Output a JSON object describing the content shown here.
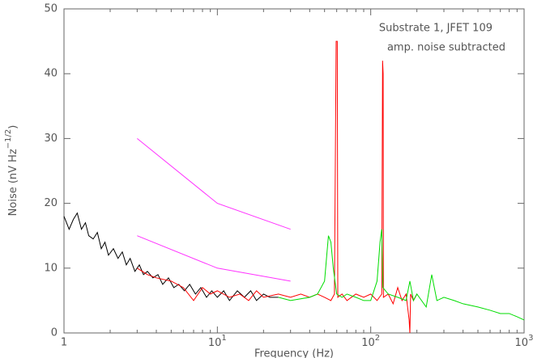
{
  "chart_data": {
    "type": "line",
    "annotations": [
      "Substrate 1, JFET 109",
      "amp. noise subtracted"
    ],
    "xlabel": "Frequency (Hz)",
    "ylabel": {
      "text": "Noise (nV Hz",
      "superscript": "−1/2",
      "suffix": ")"
    },
    "xscale": "log",
    "xlim": [
      1,
      1000
    ],
    "ylim": [
      0,
      50
    ],
    "xticks": [
      1,
      {
        "value": 10,
        "label": "10^1"
      },
      {
        "value": 100,
        "label": "10^2"
      },
      {
        "value": 1000,
        "label": "10^3"
      }
    ],
    "yticks": [
      0,
      10,
      20,
      30,
      40,
      50
    ],
    "grid": false,
    "series": [
      {
        "color": "#000000",
        "x": [
          1,
          1.08,
          1.15,
          1.22,
          1.3,
          1.38,
          1.45,
          1.55,
          1.65,
          1.75,
          1.85,
          1.95,
          2.1,
          2.25,
          2.4,
          2.55,
          2.7,
          2.9,
          3.1,
          3.3,
          3.5,
          3.8,
          4.1,
          4.4,
          4.8,
          5.2,
          5.6,
          6.1,
          6.6,
          7.2,
          7.8,
          8.5,
          9.2,
          10,
          11,
          12,
          13.5,
          15,
          16.5,
          18,
          20,
          22,
          25
        ],
        "values": [
          18,
          16,
          17.5,
          18.5,
          16,
          17,
          15,
          14.5,
          15.5,
          13,
          14,
          12,
          13,
          11.5,
          12.5,
          10.5,
          11.5,
          9.5,
          10.5,
          9,
          9.5,
          8.5,
          9,
          7.5,
          8.5,
          7,
          7.5,
          6.5,
          7.5,
          6,
          7,
          5.5,
          6.5,
          5.5,
          6.5,
          5,
          6.5,
          5.5,
          6.5,
          5,
          6,
          5.5,
          5.5
        ]
      },
      {
        "color": "#ff0000",
        "x": [
          3,
          3.5,
          4,
          5,
          6,
          7,
          8,
          9,
          10,
          12,
          14,
          16,
          18,
          20,
          25,
          30,
          35,
          40,
          45,
          50,
          55,
          58,
          59.5,
          60.5,
          61,
          65,
          70,
          80,
          90,
          100,
          110,
          118,
          119.5,
          120.5,
          121,
          130,
          140,
          150,
          160,
          170,
          178,
          180,
          182,
          190,
          200
        ],
        "values": [
          10,
          9,
          8.5,
          8,
          7,
          5,
          7,
          6,
          6.5,
          5.5,
          6,
          5,
          6.5,
          5.5,
          6,
          5.5,
          6,
          5.5,
          6,
          5.5,
          5,
          6,
          45,
          45,
          5.5,
          6,
          5,
          6,
          5.5,
          6,
          5,
          6,
          42,
          40,
          5.5,
          6,
          4.5,
          7,
          5,
          6,
          2,
          0,
          6,
          5,
          6
        ]
      },
      {
        "color": "#00dd00",
        "x": [
          25,
          30,
          40,
          45,
          50,
          53,
          55,
          57,
          60,
          65,
          70,
          80,
          90,
          100,
          110,
          115,
          118,
          120,
          130,
          150,
          170,
          180,
          190,
          200,
          230,
          250,
          270,
          300,
          350,
          400,
          500,
          600,
          700,
          800,
          900,
          1000
        ],
        "values": [
          5.5,
          5,
          5.5,
          6,
          8,
          15,
          14,
          10,
          6,
          5.5,
          6,
          5.5,
          5,
          5,
          8,
          14,
          16,
          7,
          6,
          5.5,
          5,
          8,
          5,
          6,
          4,
          9,
          5,
          5.5,
          5,
          4.5,
          4,
          3.5,
          3,
          3,
          2.5,
          2
        ]
      },
      {
        "color": "#ff33ff",
        "x": [
          3,
          10,
          30
        ],
        "values": [
          30,
          20,
          16
        ]
      },
      {
        "color": "#ff33ff",
        "x": [
          3,
          10,
          30
        ],
        "values": [
          15,
          10,
          8
        ]
      }
    ]
  }
}
